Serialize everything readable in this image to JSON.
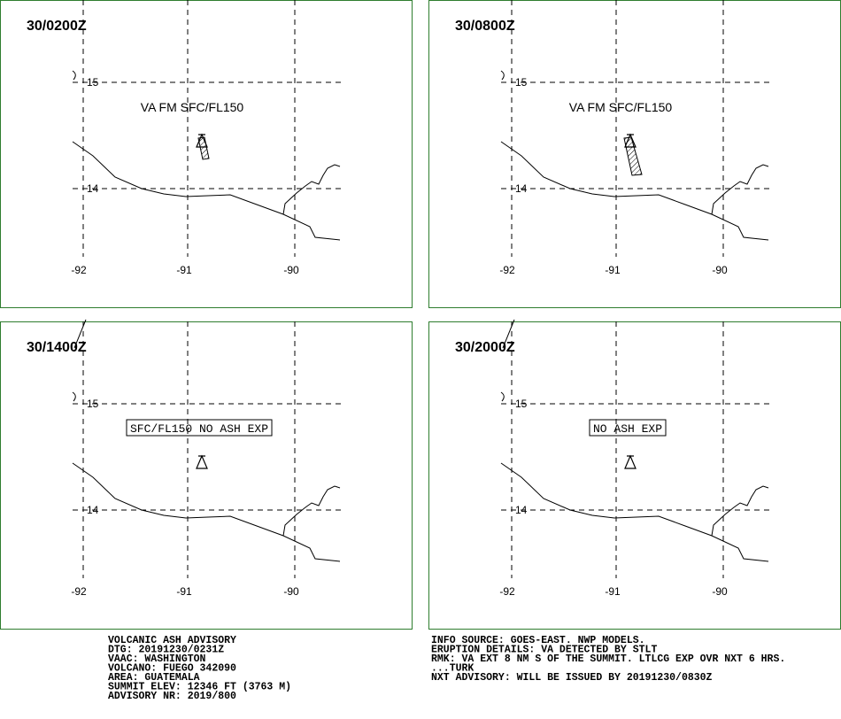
{
  "panels": [
    {
      "time": "30/0200Z",
      "annotation": "VA FM SFC/FL150",
      "boxed": false,
      "lat_labels": [
        "15",
        "14"
      ],
      "lon_labels": [
        "-92",
        "-91",
        "-90"
      ]
    },
    {
      "time": "30/0800Z",
      "annotation": "VA FM SFC/FL150",
      "boxed": false,
      "lat_labels": [
        "15",
        "14"
      ],
      "lon_labels": [
        "-92",
        "-91",
        "-90"
      ]
    },
    {
      "time": "30/1400Z",
      "annotation": "SFC/FL150 NO ASH EXP",
      "boxed": true,
      "lat_labels": [
        "15",
        "14"
      ],
      "lon_labels": [
        "-92",
        "-91",
        "-90"
      ]
    },
    {
      "time": "30/2000Z",
      "annotation": "NO ASH EXP",
      "boxed": true,
      "lat_labels": [
        "15",
        "14"
      ],
      "lon_labels": [
        "-92",
        "-91",
        "-90"
      ]
    }
  ],
  "advisory": {
    "left": [
      "VOLCANIC ASH ADVISORY",
      "DTG: 20191230/0231Z",
      "VAAC: WASHINGTON",
      "VOLCANO: FUEGO 342090",
      "AREA: GUATEMALA",
      "SUMMIT ELEV: 12346 FT (3763 M)",
      "ADVISORY NR: 2019/800"
    ],
    "right": [
      "INFO SOURCE: GOES-EAST. NWP MODELS.",
      "ERUPTION DETAILS: VA DETECTED BY STLT",
      "RMK: VA EXT 8 NM S OF THE SUMMIT. LTLCG EXP OVR NXT 6 HRS.",
      "...TURK",
      "NXT ADVISORY: WILL BE ISSUED BY 20191230/0830Z"
    ]
  }
}
